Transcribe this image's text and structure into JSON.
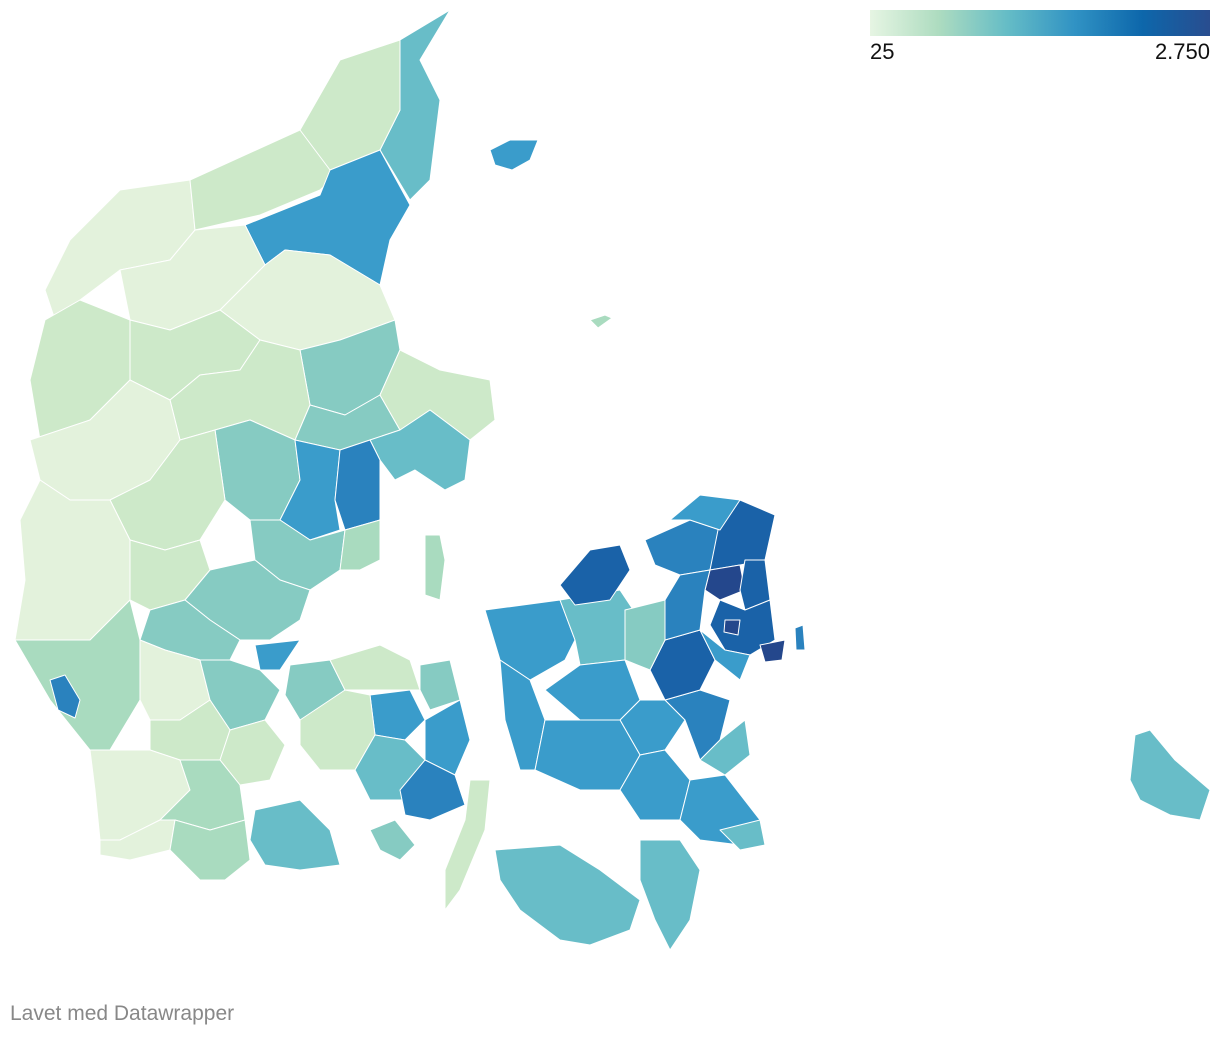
{
  "legend": {
    "min_label": "25",
    "max_label": "2.750",
    "gradient": [
      "#e6f5e3",
      "#aedcc0",
      "#66bdc6",
      "#3193c4",
      "#0d67ab",
      "#294d8f"
    ]
  },
  "footer": {
    "credit": "Lavet med Datawrapper"
  },
  "colors": {
    "lowest": "#e3f2dc",
    "low": "#cde9c9",
    "low_mid": "#a9dbbf",
    "mid": "#86cbc2",
    "mid_high": "#68bdc8",
    "high": "#3a9ccb",
    "higher": "#2a82be",
    "highest": "#1a62a8",
    "top": "#24478c"
  }
}
